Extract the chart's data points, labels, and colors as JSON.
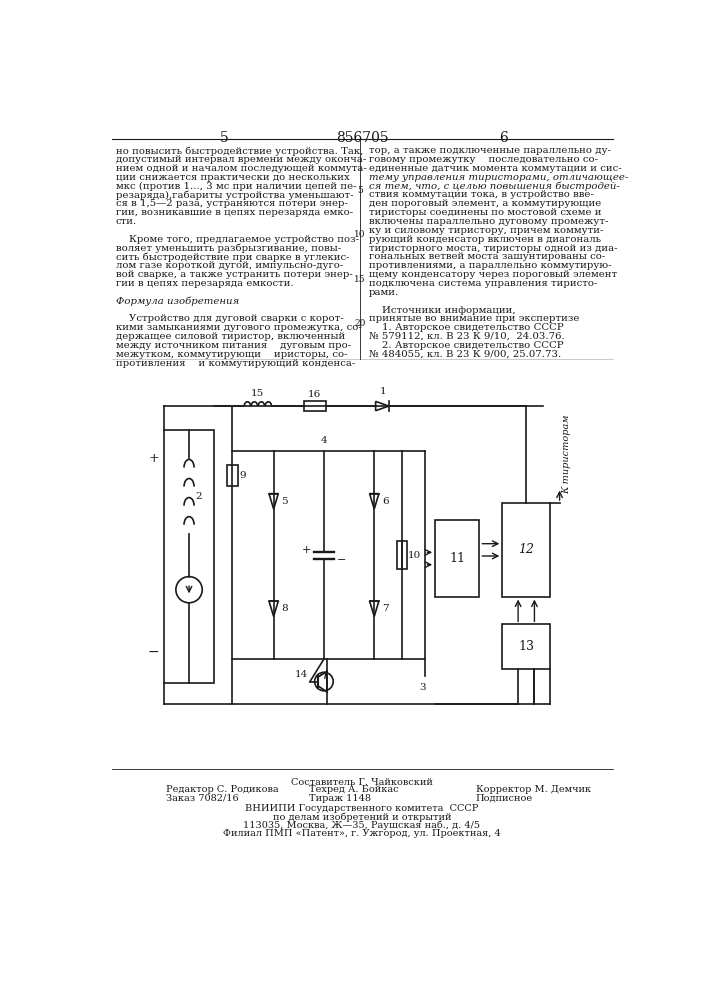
{
  "page_title": "856705",
  "page_left": "5",
  "page_right": "6",
  "left_col_lines": [
    "но повысить быстродействие устройства. Так,",
    "допустимый интервал времени между оконча-",
    "нием одной и началом последующей коммута-",
    "ции снижается практически до нескольких",
    "мкс (против 1..., 3 мс при наличии цепей пе-",
    "резаряда),габариты устройства уменьшают-",
    "ся в 1,5—2 раза, устраняются потери энер-",
    "гии, возникавшие в цепях перезаряда емко-",
    "сти.",
    "",
    "    Кроме того, предлагаемое устройство поз-",
    "воляет уменьшить разбрызгивание, повы-",
    "сить быстродействие при сварке в углекис-",
    "лом газе короткой дугой, импульсно-дуго-",
    "вой сварке, а также устранить потери энер-",
    "гии в цепях перезаряда емкости.",
    "",
    "Формула изобретения",
    "",
    "    Устройство для дуговой сварки с корот-",
    "кими замыканиями дугового промежутка, со-",
    "держащее силовой тиристор, включенный",
    "между источником питания    дуговым про-",
    "межутком, коммутирующи    иристоры, со-",
    "противления    и коммутирующий конденса-"
  ],
  "right_col_lines": [
    "тор, а также подключенные параллельно ду-",
    "говому промежутку    последовательно со-",
    "единенные датчик момента коммутации и сис-",
    "тему управления тиристорами, отличающее-",
    "ся тем, что, с целью повышения быстродей-",
    "ствия коммутации тока, в устройство вве-",
    "ден пороговый элемент, а коммутирующие",
    "тиристоры соединены по мостовой схеме и",
    "включены параллельно дуговому промежут-",
    "ку и силовому тиристору, причем коммути-",
    "рующий конденсатор включен в диагональ",
    "тиристорного моста, тиристоры одной из диа-",
    "гональных ветвей моста зашунтированы со-",
    "противлениями, а параллельно коммутирую-",
    "щему конденсатору через пороговый элемент",
    "подключена система управления тиристо-",
    "рами.",
    "",
    "    Источники информации,",
    "принятые во внимание при экспертизе",
    "    1. Авторское свидетельство СССР",
    "№ 579112, кл. В 23 К 9/10,  24.03.76.",
    "    2. Авторское свидетельство СССР",
    "№ 484055, кл. В 23 К 9/00, 25.07.73."
  ],
  "line_numbers": [
    [
      5,
      5
    ],
    [
      10,
      10
    ],
    [
      15,
      15
    ],
    [
      20,
      20
    ]
  ],
  "footer_row0": "Составитель Г. Чайковский",
  "footer_row1_l": "Редактор С. Родикова",
  "footer_row1_c": "Техред А. Бойкас",
  "footer_row1_r": "Корректор М. Демчик",
  "footer_row2_l": "Заказ 7082/16",
  "footer_row2_c": "Тираж 1148",
  "footer_row2_r": "Подписное",
  "footer_vniip1": "ВНИИПИ Государственного комитета  СССР",
  "footer_vniip2": "по делам изобретений и открытий",
  "footer_vniip3": "113035, Москва, Ж—35, Раушская наб., д. 4/5",
  "footer_vniip4": "Филиал ПМП «Патент», г. Ужгород, ул. Проектная, 4",
  "bg_color": "#ffffff",
  "text_color": "#1a1a1a",
  "line_color": "#1a1a1a"
}
